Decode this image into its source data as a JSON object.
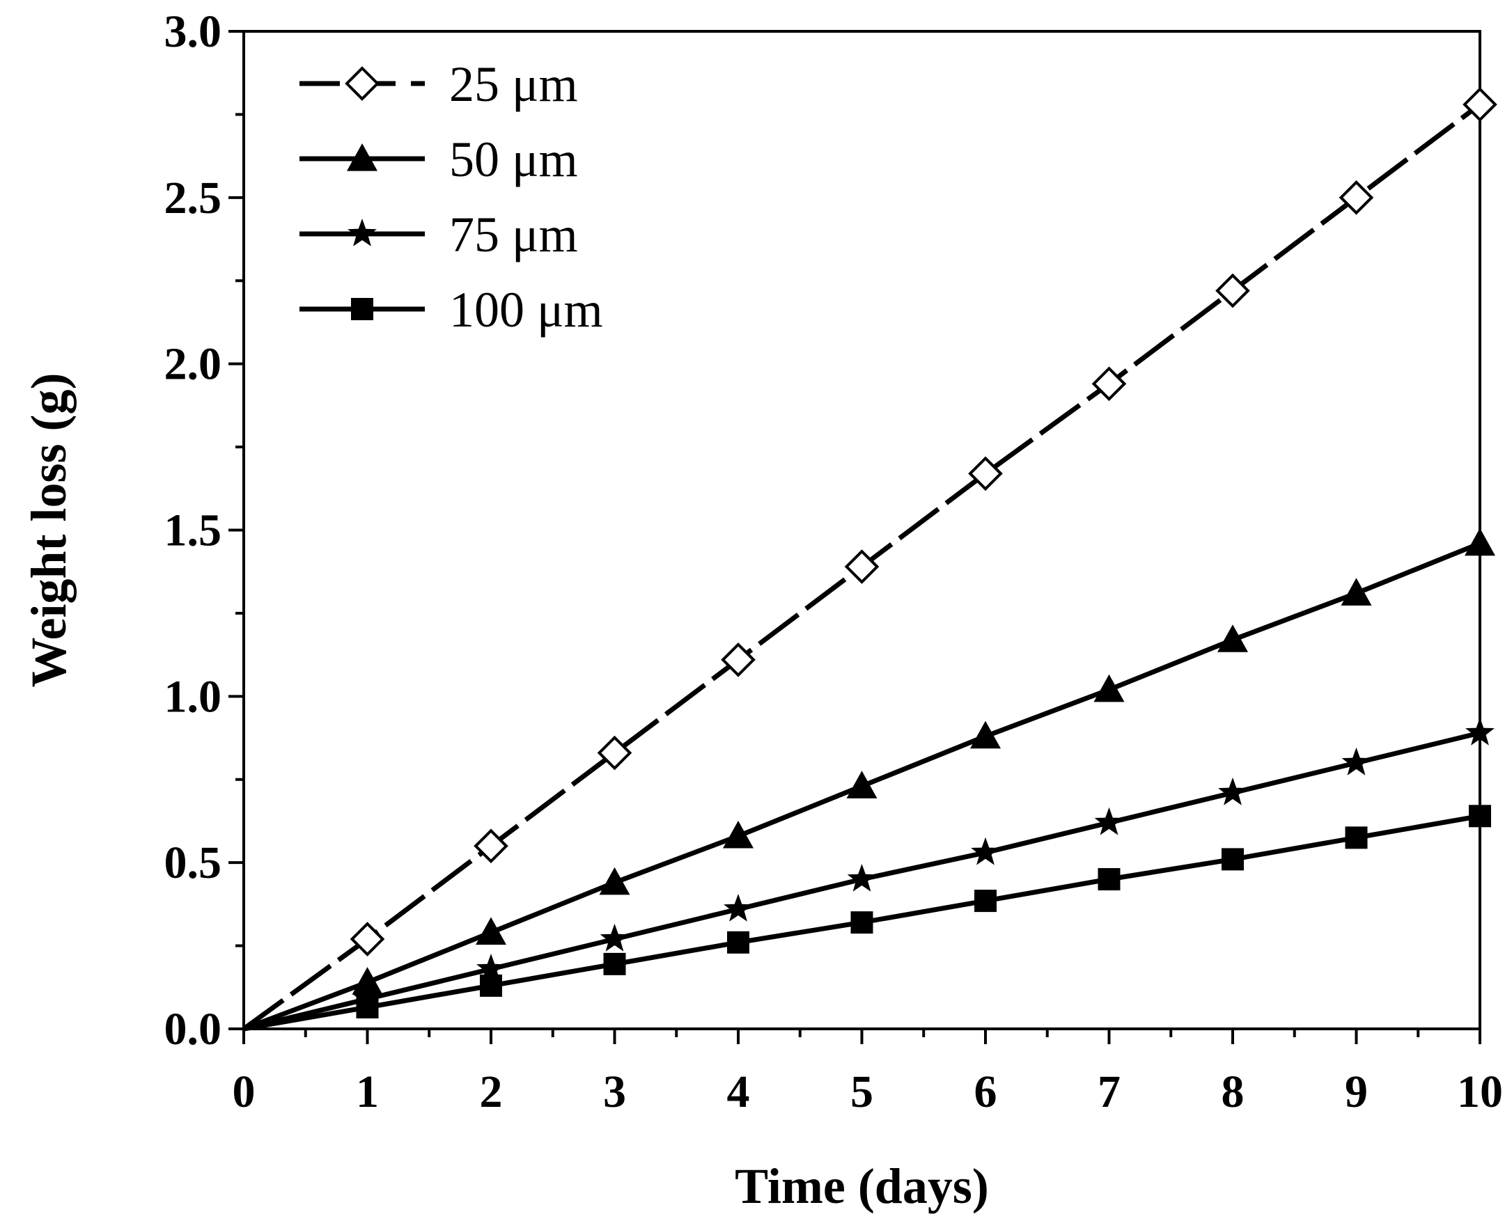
{
  "chart_data": {
    "type": "line",
    "xlabel": "Time (days)",
    "ylabel": "Weight loss (g)",
    "xlim": [
      0,
      10
    ],
    "ylim": [
      0,
      3.0
    ],
    "x_ticks": [
      "0",
      "1",
      "2",
      "3",
      "4",
      "5",
      "6",
      "7",
      "8",
      "9",
      "10"
    ],
    "y_ticks": [
      "0.0",
      "0.5",
      "1.0",
      "1.5",
      "2.0",
      "2.5",
      "3.0"
    ],
    "x": [
      0,
      1,
      2,
      3,
      4,
      5,
      6,
      7,
      8,
      9,
      10
    ],
    "grid": false,
    "legend_position": "top-left",
    "series": [
      {
        "name": "25 μm",
        "marker": "open-diamond",
        "line": "dashed",
        "values": [
          0,
          0.27,
          0.55,
          0.83,
          1.11,
          1.39,
          1.67,
          1.94,
          2.22,
          2.5,
          2.78
        ]
      },
      {
        "name": "50 μm",
        "marker": "filled-triangle",
        "line": "solid",
        "values": [
          0,
          0.14,
          0.29,
          0.44,
          0.58,
          0.73,
          0.88,
          1.02,
          1.17,
          1.31,
          1.46
        ]
      },
      {
        "name": "75 μm",
        "marker": "star",
        "line": "solid",
        "values": [
          0,
          0.09,
          0.18,
          0.27,
          0.36,
          0.45,
          0.53,
          0.62,
          0.71,
          0.8,
          0.89
        ]
      },
      {
        "name": "100 μm",
        "marker": "filled-square",
        "line": "solid",
        "values": [
          0,
          0.065,
          0.13,
          0.195,
          0.26,
          0.32,
          0.385,
          0.45,
          0.51,
          0.575,
          0.64
        ]
      }
    ]
  }
}
